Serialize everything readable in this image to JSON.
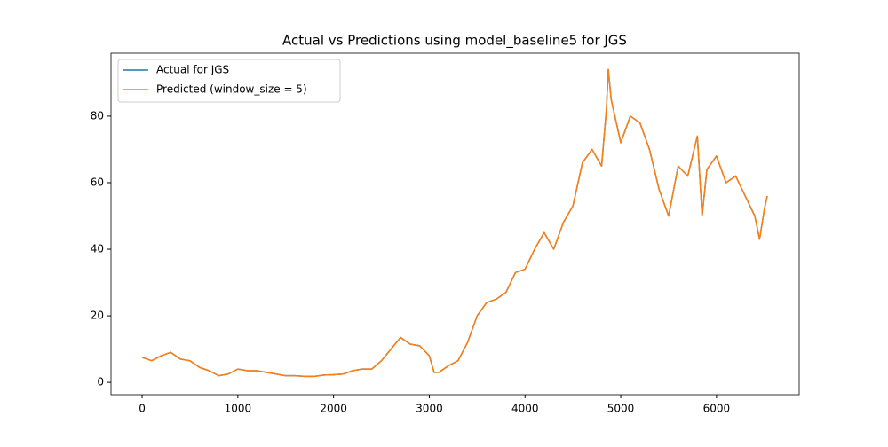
{
  "chart_data": {
    "type": "line",
    "title": "Actual vs Predictions using model_baseline5 for JGS",
    "x": [
      0,
      100,
      200,
      300,
      400,
      500,
      600,
      700,
      800,
      900,
      1000,
      1100,
      1200,
      1300,
      1400,
      1500,
      1600,
      1700,
      1800,
      1900,
      2000,
      2100,
      2200,
      2300,
      2400,
      2500,
      2600,
      2700,
      2800,
      2900,
      3000,
      3050,
      3100,
      3200,
      3300,
      3400,
      3500,
      3600,
      3700,
      3800,
      3900,
      4000,
      4100,
      4200,
      4300,
      4400,
      4500,
      4600,
      4700,
      4800,
      4850,
      4870,
      4900,
      5000,
      5100,
      5200,
      5300,
      5400,
      5500,
      5600,
      5700,
      5800,
      5850,
      5900,
      6000,
      6100,
      6200,
      6300,
      6400,
      6450,
      6500,
      6530
    ],
    "series": [
      {
        "name": "Actual for JGS",
        "color": "#1f77b4",
        "values": [
          7.5,
          6.5,
          8,
          9,
          7,
          6.5,
          4.5,
          3.5,
          2,
          2.5,
          4,
          3.5,
          3.5,
          3,
          2.5,
          2,
          2,
          1.8,
          1.8,
          2.2,
          2.3,
          2.5,
          3.5,
          4,
          4,
          6.5,
          10,
          13.5,
          11.5,
          11,
          8,
          3,
          3,
          5,
          6.5,
          12,
          20,
          24,
          25,
          27,
          33,
          34,
          40,
          45,
          40,
          48,
          53,
          66,
          70,
          65,
          82,
          94,
          85,
          72,
          80,
          78,
          70,
          58,
          50,
          65,
          62,
          74,
          50,
          64,
          68,
          60,
          62,
          56,
          50,
          43,
          52,
          56
        ]
      },
      {
        "name": "Predicted (window_size = 5)",
        "color": "#ff7f0e",
        "values": [
          7.5,
          6.5,
          8,
          9,
          7,
          6.5,
          4.5,
          3.5,
          2,
          2.5,
          4,
          3.5,
          3.5,
          3,
          2.5,
          2,
          2,
          1.8,
          1.8,
          2.2,
          2.3,
          2.5,
          3.5,
          4,
          4,
          6.5,
          10,
          13.5,
          11.5,
          11,
          8,
          3,
          3,
          5,
          6.5,
          12,
          20,
          24,
          25,
          27,
          33,
          34,
          40,
          45,
          40,
          48,
          53,
          66,
          70,
          65,
          82,
          94,
          85,
          72,
          80,
          78,
          70,
          58,
          50,
          65,
          62,
          74,
          50,
          64,
          68,
          60,
          62,
          56,
          50,
          43,
          52,
          56
        ]
      }
    ],
    "xlim": [
      -325,
      6864
    ],
    "ylim": [
      -3.7,
      98.9
    ],
    "xticks": [
      0,
      1000,
      2000,
      3000,
      4000,
      5000,
      6000
    ],
    "yticks": [
      0,
      20,
      40,
      60,
      80
    ],
    "legend": "upper left",
    "grid": false
  }
}
